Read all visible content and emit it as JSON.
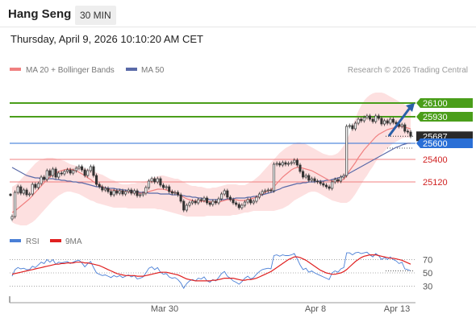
{
  "header": {
    "instrument": "Hang Seng",
    "timeframe": "30 MIN",
    "datetime": "Thursday, April 9, 2026 10:10:20 AM CET"
  },
  "legend": {
    "ma20_bb": "MA 20 + Bollinger Bands",
    "ma50": "MA 50",
    "rsi": "RSI",
    "rsi_ma": "9MA",
    "credit": "Research © 2026 Trading Central"
  },
  "colors": {
    "candle": "#333333",
    "ma20": "#f08080",
    "band_fill": "#fde0e0",
    "ma50": "#5a6aa8",
    "support_resistance_green": "#4a9e1a",
    "pivot_blue": "#2a6fd6",
    "resistance_red": "#f08080",
    "rsi_line": "#4a7fd6",
    "rsi_ma_line": "#e02020",
    "arrow": "#2a5fa8"
  },
  "chart_data": [
    {
      "type": "candlestick",
      "x_ticks": [
        "Mar 30",
        "Apr 8",
        "Apr 13"
      ],
      "ylim": [
        24560,
        26400
      ],
      "levels": [
        {
          "value": 26100,
          "label": "26100",
          "style": "green"
        },
        {
          "value": 25930,
          "label": "25930",
          "style": "green"
        },
        {
          "value": 25687,
          "label": "25687",
          "style": "current"
        },
        {
          "value": 25600,
          "label": "25600",
          "style": "blue"
        },
        {
          "value": 25400,
          "label": "25400",
          "style": "red"
        },
        {
          "value": 25120,
          "label": "25120",
          "style": "red"
        }
      ],
      "close": [
        24690,
        24990,
        25060,
        24980,
        25020,
        24960,
        24970,
        25090,
        25050,
        25100,
        25180,
        25150,
        25260,
        25200,
        25280,
        25180,
        25230,
        25220,
        25250,
        25270,
        25230,
        25260,
        25290,
        25310,
        25270,
        25200,
        25260,
        25310,
        25200,
        25090,
        25060,
        25020,
        25040,
        25000,
        24960,
        25010,
        24980,
        25010,
        24970,
        25000,
        25020,
        24980,
        25010,
        24950,
        24960,
        24980,
        25050,
        25130,
        25160,
        25120,
        25160,
        25080,
        25050,
        25060,
        25000,
        24980,
        24990,
        24960,
        24880,
        24770,
        24830,
        24860,
        24880,
        24860,
        24900,
        24890,
        24920,
        24860,
        24840,
        24880,
        24860,
        24910,
        24970,
        25010,
        24930,
        24900,
        24860,
        24840,
        24800,
        24830,
        24870,
        24900,
        24860,
        24880,
        24930,
        24970,
        25000,
        25010,
        25020,
        25010,
        25340,
        25350,
        25330,
        25360,
        25340,
        25350,
        25360,
        25390,
        25330,
        25250,
        25180,
        25200,
        25140,
        25160,
        25130,
        25120,
        25100,
        25080,
        25060,
        25040,
        25120,
        25150,
        25130,
        25180,
        25200,
        25810,
        25820,
        25780,
        25850,
        25900,
        25880,
        25920,
        25940,
        25900,
        25870,
        25940,
        25910,
        25840,
        25880,
        25850,
        25900,
        25860,
        25840,
        25810,
        25830,
        25750,
        25740,
        25687
      ],
      "ma20": [
        24740,
        24760,
        24790,
        24820,
        24850,
        24880,
        24910,
        24950,
        24990,
        25030,
        25070,
        25110,
        25150,
        25180,
        25210,
        25230,
        25250,
        25260,
        25270,
        25280,
        25280,
        25270,
        25260,
        25240,
        25220,
        25200,
        25170,
        25150,
        25120,
        25100,
        25080,
        25060,
        25040,
        25030,
        25020,
        25020,
        25010,
        25010,
        25000,
        25000,
        25000,
        24990,
        24990,
        24980,
        24980,
        24980,
        24990,
        25000,
        25010,
        25020,
        25030,
        25030,
        25030,
        25020,
        25010,
        25000,
        24990,
        24970,
        24950,
        24930,
        24910,
        24900,
        24890,
        24880,
        24880,
        24880,
        24880,
        24880,
        24870,
        24870,
        24870,
        24870,
        24880,
        24890,
        24900,
        24900,
        24900,
        24900,
        24890,
        24890,
        24890,
        24900,
        24910,
        24920,
        24930,
        24950,
        24970,
        24990,
        25010,
        25020,
        25060,
        25100,
        25140,
        25180,
        25210,
        25240,
        25270,
        25290,
        25300,
        25300,
        25290,
        25280,
        25270,
        25260,
        25240,
        25220,
        25200,
        25180,
        25160,
        25140,
        25130,
        25130,
        25130,
        25140,
        25150,
        25200,
        25260,
        25310,
        25360,
        25420,
        25470,
        25520,
        25560,
        25600,
        25640,
        25680,
        25710,
        25730,
        25750,
        25770,
        25780,
        25790,
        25800,
        25810,
        25810,
        25800,
        25790,
        25780
      ],
      "bb_upper": [
        25060,
        25080,
        25110,
        25150,
        25190,
        25230,
        25270,
        25310,
        25350,
        25380,
        25400,
        25410,
        25420,
        25420,
        25420,
        25410,
        25400,
        25390,
        25380,
        25360,
        25340,
        25330,
        25320,
        25310,
        25300,
        25290,
        25280,
        25270,
        25250,
        25240,
        25220,
        25210,
        25190,
        25170,
        25150,
        25140,
        25120,
        25100,
        25090,
        25090,
        25090,
        25100,
        25100,
        25110,
        25110,
        25120,
        25130,
        25150,
        25170,
        25180,
        25190,
        25200,
        25200,
        25190,
        25180,
        25170,
        25160,
        25160,
        25140,
        25120,
        25100,
        25080,
        25070,
        25070,
        25060,
        25060,
        25050,
        25040,
        25040,
        25050,
        25050,
        25060,
        25070,
        25080,
        25090,
        25090,
        25090,
        25090,
        25080,
        25080,
        25080,
        25100,
        25120,
        25140,
        25170,
        25200,
        25240,
        25280,
        25320,
        25360,
        25400,
        25440,
        25480,
        25510,
        25540,
        25560,
        25580,
        25600,
        25610,
        25610,
        25600,
        25590,
        25570,
        25550,
        25530,
        25510,
        25490,
        25470,
        25460,
        25450,
        25450,
        25460,
        25480,
        25520,
        25570,
        25640,
        25720,
        25820,
        25910,
        26000,
        26070,
        26130,
        26170,
        26200,
        26220,
        26230,
        26230,
        26230,
        26220,
        26200,
        26180,
        26160,
        26140,
        26120,
        26100,
        26080,
        26060,
        26050
      ],
      "bb_lower": [
        24620,
        24600,
        24590,
        24580,
        24580,
        24580,
        24600,
        24620,
        24650,
        24690,
        24730,
        24770,
        24810,
        24850,
        24890,
        24920,
        24950,
        24970,
        24990,
        25000,
        25000,
        24990,
        24980,
        24970,
        24950,
        24930,
        24910,
        24890,
        24880,
        24860,
        24850,
        24840,
        24830,
        24820,
        24810,
        24800,
        24800,
        24800,
        24800,
        24800,
        24790,
        24790,
        24790,
        24790,
        24790,
        24790,
        24790,
        24790,
        24790,
        24790,
        24780,
        24780,
        24770,
        24760,
        24750,
        24740,
        24730,
        24720,
        24710,
        24700,
        24690,
        24690,
        24690,
        24690,
        24690,
        24690,
        24690,
        24700,
        24700,
        24700,
        24700,
        24700,
        24700,
        24700,
        24700,
        24700,
        24710,
        24710,
        24720,
        24730,
        24740,
        24740,
        24750,
        24760,
        24760,
        24760,
        24760,
        24760,
        24760,
        24760,
        24760,
        24770,
        24780,
        24790,
        24810,
        24830,
        24860,
        24890,
        24910,
        24930,
        24950,
        24970,
        24990,
        25000,
        25000,
        24990,
        24970,
        24950,
        24930,
        24910,
        24890,
        24880,
        24870,
        24860,
        24860,
        24860,
        24880,
        24920,
        24970,
        25030,
        25090,
        25150,
        25200,
        25260,
        25310,
        25370,
        25420,
        25460,
        25500,
        25540,
        25570,
        25600,
        25620,
        25640,
        25660,
        25670,
        25670,
        25670
      ],
      "ma50": [
        25300,
        25280,
        25260,
        25240,
        25220,
        25200,
        25190,
        25180,
        25170,
        25170,
        25160,
        25160,
        25160,
        25160,
        25160,
        25150,
        25150,
        25140,
        25140,
        25130,
        25130,
        25120,
        25120,
        25110,
        25110,
        25100,
        25090,
        25080,
        25070,
        25060,
        25060,
        25050,
        25050,
        25040,
        25040,
        25040,
        25030,
        25030,
        25020,
        25020,
        25010,
        25010,
        25000,
        25000,
        24990,
        24990,
        24990,
        24980,
        24980,
        24980,
        24980,
        24970,
        24970,
        24970,
        24970,
        24960,
        24960,
        24960,
        24950,
        24950,
        24940,
        24940,
        24930,
        24930,
        24920,
        24920,
        24910,
        24910,
        24900,
        24900,
        24900,
        24900,
        24900,
        24900,
        24910,
        24910,
        24910,
        24920,
        24920,
        24920,
        24920,
        24930,
        24930,
        24940,
        24940,
        24950,
        24960,
        24970,
        24980,
        24990,
        25000,
        25020,
        25030,
        25050,
        25060,
        25070,
        25080,
        25090,
        25100,
        25100,
        25110,
        25110,
        25120,
        25120,
        25120,
        25130,
        25130,
        25130,
        25140,
        25140,
        25150,
        25160,
        25170,
        25180,
        25190,
        25210,
        25230,
        25250,
        25270,
        25290,
        25310,
        25330,
        25350,
        25370,
        25390,
        25410,
        25430,
        25450,
        25470,
        25490,
        25510,
        25530,
        25550,
        25560,
        25580,
        25590,
        25600,
        25600
      ]
    },
    {
      "type": "line",
      "name": "RSI",
      "yticks": [
        70,
        50,
        30
      ],
      "ylim": [
        15,
        85
      ],
      "rsi": [
        45,
        55,
        58,
        56,
        57,
        55,
        55,
        60,
        58,
        62,
        66,
        64,
        70,
        66,
        70,
        63,
        66,
        65,
        66,
        67,
        64,
        66,
        68,
        69,
        65,
        59,
        64,
        67,
        58,
        50,
        48,
        46,
        47,
        45,
        43,
        46,
        44,
        46,
        43,
        45,
        47,
        44,
        46,
        41,
        42,
        44,
        50,
        57,
        59,
        55,
        58,
        51,
        48,
        49,
        44,
        42,
        43,
        40,
        35,
        27,
        34,
        38,
        40,
        38,
        42,
        41,
        44,
        38,
        36,
        40,
        38,
        43,
        49,
        52,
        45,
        42,
        38,
        36,
        33,
        37,
        42,
        45,
        41,
        43,
        48,
        52,
        55,
        56,
        57,
        56,
        76,
        77,
        75,
        77,
        76,
        76,
        77,
        79,
        71,
        62,
        55,
        57,
        51,
        53,
        50,
        48,
        46,
        44,
        42,
        40,
        50,
        53,
        51,
        56,
        58,
        80,
        80,
        77,
        80,
        81,
        79,
        80,
        81,
        77,
        74,
        79,
        76,
        70,
        73,
        70,
        74,
        70,
        68,
        64,
        66,
        56,
        55,
        53
      ],
      "rsi_9ma": [
        48,
        49,
        50,
        51,
        52,
        53,
        54,
        55,
        56,
        57,
        58,
        59,
        60,
        61,
        62,
        63,
        63,
        64,
        64,
        65,
        65,
        65,
        66,
        66,
        66,
        65,
        65,
        64,
        63,
        62,
        61,
        59,
        57,
        55,
        53,
        51,
        49,
        48,
        47,
        46,
        46,
        46,
        46,
        45,
        45,
        45,
        46,
        47,
        48,
        49,
        50,
        51,
        51,
        51,
        50,
        49,
        48,
        47,
        45,
        43,
        41,
        40,
        39,
        38,
        38,
        38,
        38,
        38,
        38,
        39,
        39,
        40,
        41,
        42,
        42,
        42,
        42,
        41,
        40,
        39,
        39,
        40,
        40,
        41,
        42,
        44,
        46,
        48,
        50,
        52,
        55,
        58,
        61,
        64,
        67,
        70,
        72,
        74,
        74,
        73,
        71,
        69,
        66,
        63,
        60,
        57,
        54,
        52,
        50,
        49,
        48,
        48,
        49,
        50,
        52,
        55,
        59,
        63,
        67,
        70,
        73,
        75,
        76,
        77,
        77,
        77,
        76,
        75,
        74,
        73,
        72,
        72,
        71,
        70,
        69,
        67,
        65,
        63
      ]
    }
  ]
}
